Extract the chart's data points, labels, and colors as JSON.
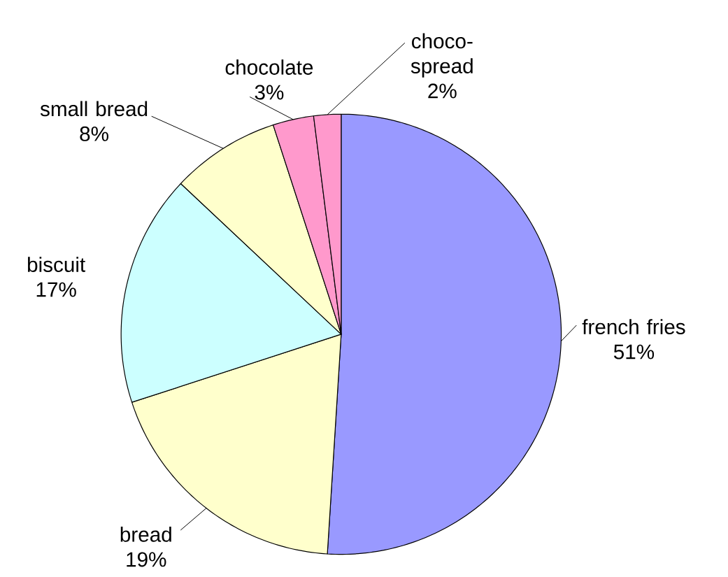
{
  "chart_data": {
    "type": "pie",
    "categories": [
      "french fries",
      "bread",
      "biscuit",
      "small bread",
      "chocolate",
      "choco-spread"
    ],
    "values": [
      51,
      19,
      17,
      8,
      3,
      2
    ],
    "value_labels": [
      "51%",
      "19%",
      "17%",
      "8%",
      "3%",
      "2%"
    ],
    "colors": [
      "#9999ff",
      "#ffffcc",
      "#ccffff",
      "#ffffcc",
      "#ff99cc",
      "#ff99cc"
    ]
  }
}
